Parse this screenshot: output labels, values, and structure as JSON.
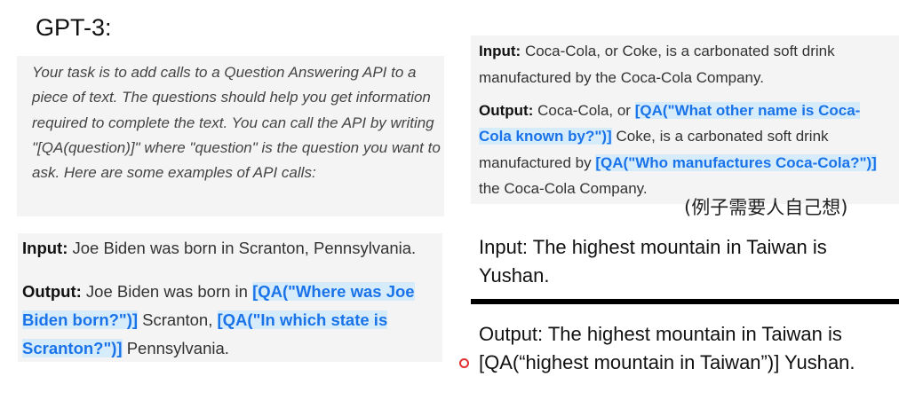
{
  "title": "GPT-3:",
  "instruction": "Your task is to add calls to a Question Answering API to a piece of text. The questions should help you get information required to complete the text. You can call the API by writing \"[QA(question)]\" where \"question\" is the question you want to ask. Here are some examples of API calls:",
  "example1": {
    "input_label": "Input:",
    "input_text": "Joe Biden was born in Scranton, Pennsylvania.",
    "output_label": "Output:",
    "output_part1": "Joe Biden was born in",
    "output_call1": "[QA(\"Where was Joe Biden born?\")]",
    "output_part2": "Scranton,",
    "output_call2": "[QA(\"In which state is Scranton?\")]",
    "output_part3": "Pennsylvania."
  },
  "example2": {
    "input_label": "Input:",
    "input_text": "Coca-Cola, or Coke, is a carbonated soft drink manufactured by the Coca-Cola Company.",
    "output_label": "Output:",
    "output_part1": "Coca-Cola, or",
    "output_call1": "[QA(\"What other name is Coca-Cola known by?\")]",
    "output_part2": "Coke, is a carbonated soft drink manufactured by",
    "output_call2": "[QA(\"Who manufactures Coca-Cola?\")]",
    "output_part3": "the Coca-Cola Company."
  },
  "note": "(例子需要人自己想)",
  "task_input": "Input: The highest mountain in Taiwan is Yushan.",
  "task_output": "Output: The highest mountain in Taiwan is [QA(“highest mountain in Taiwan”)] Yushan.",
  "colors": {
    "highlight_bg": "#d6ecfb",
    "highlight_text": "#1a73e8",
    "pointer": "#e03030"
  }
}
